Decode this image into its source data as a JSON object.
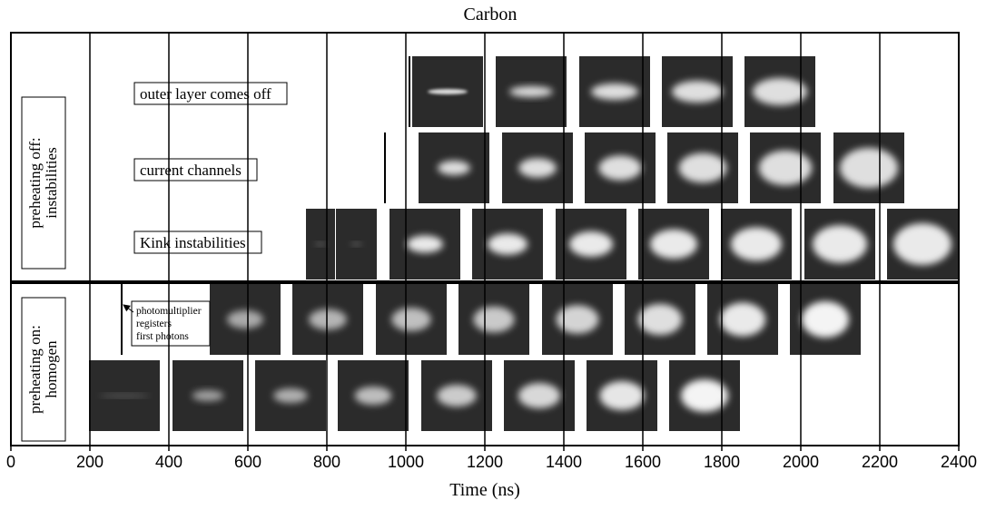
{
  "figure": {
    "title": "Carbon",
    "axis": {
      "label": "Time (ns)",
      "xlim": [
        0,
        2400
      ],
      "xticks": [
        0,
        200,
        400,
        600,
        800,
        1000,
        1200,
        1400,
        1600,
        1800,
        2000,
        2200,
        2400
      ]
    },
    "groups": [
      {
        "lines": [
          "preheating off:",
          "instabilities"
        ]
      },
      {
        "lines": [
          "preheating on:",
          "homogen"
        ]
      }
    ],
    "row_labels": [
      "outer layer comes off",
      "current channels",
      "Kink instabilities"
    ],
    "annotation": {
      "lines": [
        "photomultiplier",
        "registers",
        "first photons"
      ]
    }
  }
}
